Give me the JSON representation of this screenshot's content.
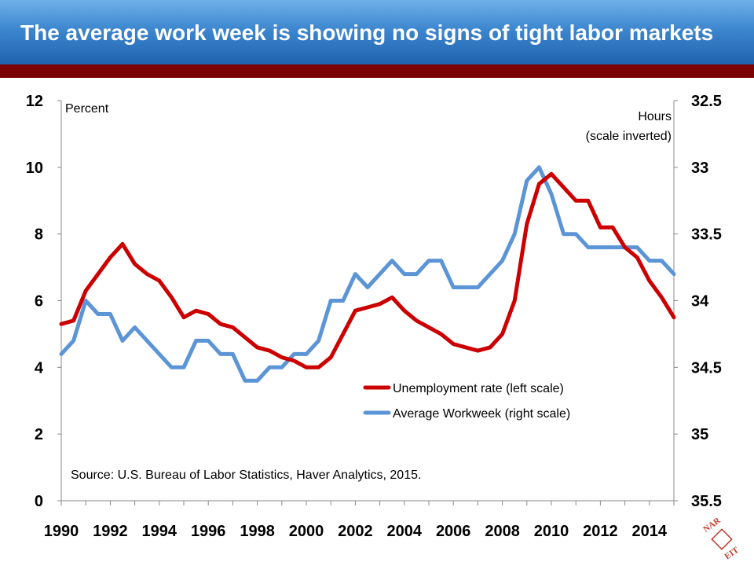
{
  "header": {
    "title": "The average work week is showing no signs of tight labor markets"
  },
  "colors": {
    "header_top": "#6fb1e8",
    "header_bottom": "#1f62ad",
    "header_bar": "#7b0000",
    "unemployment_line": "#cc0000",
    "workweek_line": "#5b95d6"
  },
  "logo": {
    "icon": "nareit-logo-icon",
    "text": "NAREIT"
  },
  "chart_data": {
    "type": "line",
    "left_axis": {
      "label": "Percent",
      "ylim": [
        0,
        12
      ],
      "ticks": [
        "0",
        "2",
        "4",
        "6",
        "8",
        "10",
        "12"
      ]
    },
    "right_axis": {
      "label_line1": "Hours",
      "label_line2": "(scale inverted)",
      "ylim": [
        35.5,
        32.5
      ],
      "inverted": true,
      "ticks": [
        "32.5",
        "33",
        "33.5",
        "34",
        "34.5",
        "35",
        "35.5"
      ]
    },
    "x_axis": {
      "xlim": [
        1990,
        2015
      ],
      "ticks": [
        "1990",
        "1992",
        "1994",
        "1996",
        "1998",
        "2000",
        "2002",
        "2004",
        "2006",
        "2008",
        "2010",
        "2012",
        "2014"
      ]
    },
    "legend": {
      "position": "center-right"
    },
    "annotation": "Source: U.S. Bureau of Labor Statistics, Haver Analytics, 2015.",
    "series": [
      {
        "name": "Unemployment rate (left scale)",
        "axis": "left",
        "x": [
          1990.0,
          1990.5,
          1991.0,
          1991.5,
          1992.0,
          1992.5,
          1993.0,
          1993.5,
          1994.0,
          1994.5,
          1995.0,
          1995.5,
          1996.0,
          1996.5,
          1997.0,
          1997.5,
          1998.0,
          1998.5,
          1999.0,
          1999.5,
          2000.0,
          2000.5,
          2001.0,
          2001.5,
          2002.0,
          2002.5,
          2003.0,
          2003.5,
          2004.0,
          2004.5,
          2005.0,
          2005.5,
          2006.0,
          2006.5,
          2007.0,
          2007.5,
          2008.0,
          2008.5,
          2009.0,
          2009.5,
          2010.0,
          2010.5,
          2011.0,
          2011.5,
          2012.0,
          2012.5,
          2013.0,
          2013.5,
          2014.0,
          2014.5,
          2015.0
        ],
        "values": [
          5.3,
          5.4,
          6.3,
          6.8,
          7.3,
          7.7,
          7.1,
          6.8,
          6.6,
          6.1,
          5.5,
          5.7,
          5.6,
          5.3,
          5.2,
          4.9,
          4.6,
          4.5,
          4.3,
          4.2,
          4.0,
          4.0,
          4.3,
          5.0,
          5.7,
          5.8,
          5.9,
          6.1,
          5.7,
          5.4,
          5.2,
          5.0,
          4.7,
          4.6,
          4.5,
          4.6,
          5.0,
          6.0,
          8.3,
          9.5,
          9.8,
          9.4,
          9.0,
          9.0,
          8.2,
          8.2,
          7.6,
          7.3,
          6.6,
          6.1,
          5.5
        ]
      },
      {
        "name": "Average Workweek (right scale)",
        "axis": "right",
        "x": [
          1990.0,
          1990.5,
          1991.0,
          1991.5,
          1992.0,
          1992.5,
          1993.0,
          1993.5,
          1994.0,
          1994.5,
          1995.0,
          1995.5,
          1996.0,
          1996.5,
          1997.0,
          1997.5,
          1998.0,
          1998.5,
          1999.0,
          1999.5,
          2000.0,
          2000.5,
          2001.0,
          2001.5,
          2002.0,
          2002.5,
          2003.0,
          2003.5,
          2004.0,
          2004.5,
          2005.0,
          2005.5,
          2006.0,
          2006.5,
          2007.0,
          2007.5,
          2008.0,
          2008.5,
          2009.0,
          2009.5,
          2010.0,
          2010.5,
          2011.0,
          2011.5,
          2012.0,
          2012.5,
          2013.0,
          2013.5,
          2014.0,
          2014.5,
          2015.0
        ],
        "values": [
          34.4,
          34.3,
          34.0,
          34.1,
          34.1,
          34.3,
          34.2,
          34.3,
          34.4,
          34.5,
          34.5,
          34.3,
          34.3,
          34.4,
          34.4,
          34.6,
          34.6,
          34.5,
          34.5,
          34.4,
          34.4,
          34.3,
          34.0,
          34.0,
          33.8,
          33.9,
          33.8,
          33.7,
          33.8,
          33.8,
          33.7,
          33.7,
          33.9,
          33.9,
          33.9,
          33.8,
          33.7,
          33.5,
          33.1,
          33.0,
          33.2,
          33.5,
          33.5,
          33.6,
          33.6,
          33.6,
          33.6,
          33.6,
          33.7,
          33.7,
          33.8
        ]
      }
    ]
  }
}
